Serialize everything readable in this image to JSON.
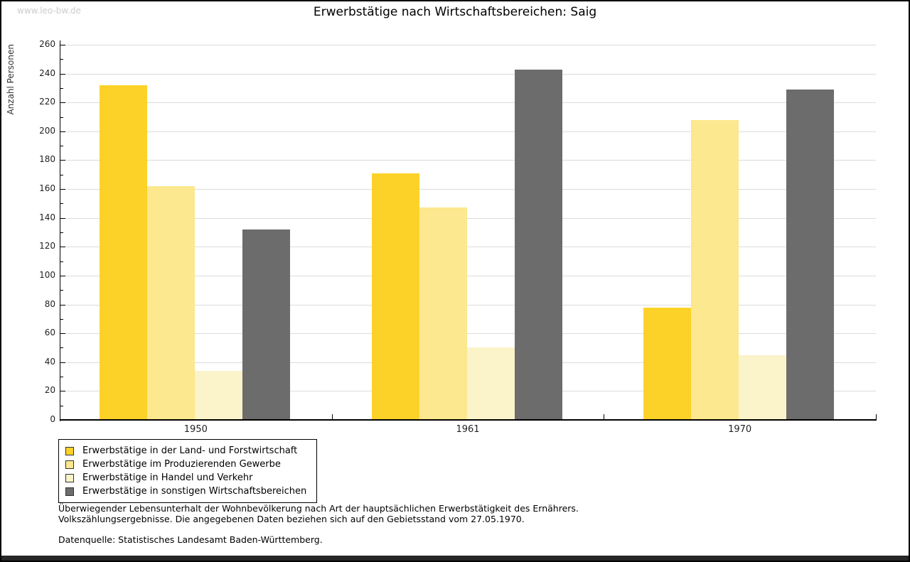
{
  "watermark": "www.leo-bw.de",
  "title": "Erwerbstätige nach Wirtschaftsbereichen: Saig",
  "chart_data": {
    "type": "bar",
    "title": "Erwerbstätige nach Wirtschaftsbereichen: Saig",
    "xlabel": "",
    "ylabel": "Anzahl Personen",
    "ylim": [
      0,
      260
    ],
    "ytick_step": 20,
    "ytick_minor_step": 10,
    "grid": true,
    "legend_position": "bottom-left",
    "categories": [
      "1950",
      "1961",
      "1970"
    ],
    "series": [
      {
        "name": "Erwerbstätige in der Land- und Forstwirtschaft",
        "color": "#FCD228",
        "values": [
          232,
          171,
          78
        ]
      },
      {
        "name": "Erwerbstätige im Produzierenden Gewerbe",
        "color": "#FCE88E",
        "values": [
          162,
          147,
          208
        ]
      },
      {
        "name": "Erwerbstätige in Handel und Verkehr",
        "color": "#FBF3C9",
        "values": [
          34,
          50,
          45
        ]
      },
      {
        "name": "Erwerbstätige in sonstigen Wirtschaftsbereichen",
        "color": "#6C6C6C",
        "values": [
          132,
          243,
          229
        ]
      }
    ],
    "colors": {
      "gridline": "#dcdcdc",
      "axis": "#000000",
      "watermark": "#cccccc"
    }
  },
  "footnotes": {
    "line1": "Überwiegender Lebensunterhalt der Wohnbevölkerung nach Art der hauptsächlichen Erwerbstätigkeit des Ernährers.",
    "line2": "Volkszählungsergebnisse. Die angegebenen Daten beziehen sich auf den Gebietsstand vom 27.05.1970.",
    "source": "Datenquelle: Statistisches Landesamt Baden-Württemberg."
  }
}
